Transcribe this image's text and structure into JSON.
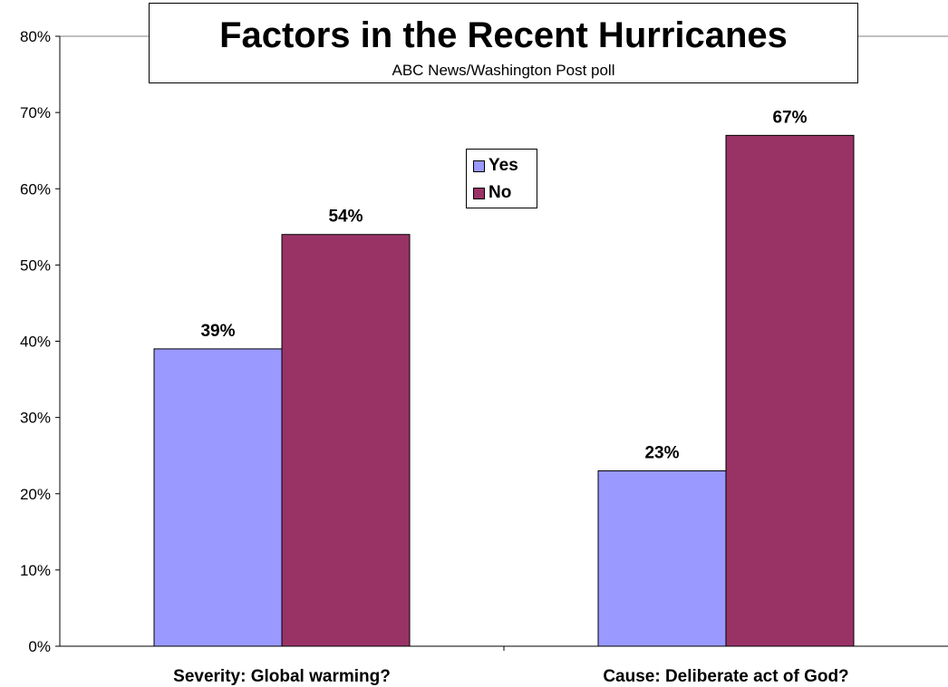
{
  "chart_data": {
    "type": "bar",
    "title": "Factors in the Recent Hurricanes",
    "subtitle": "ABC News/Washington Post poll",
    "categories": [
      "Severity: Global warming?",
      "Cause: Deliberate act of God?"
    ],
    "series": [
      {
        "name": "Yes",
        "values": [
          39,
          23
        ],
        "labels": [
          "39%",
          "23%"
        ],
        "color": "#9999ff"
      },
      {
        "name": "No",
        "values": [
          54,
          67
        ],
        "labels": [
          "54%",
          "67%"
        ],
        "color": "#993366"
      }
    ],
    "ylim": [
      0,
      80
    ],
    "yticks": [
      0,
      10,
      20,
      30,
      40,
      50,
      60,
      70,
      80
    ],
    "ytick_labels": [
      "0%",
      "10%",
      "20%",
      "30%",
      "40%",
      "50%",
      "60%",
      "70%",
      "80%"
    ],
    "grid": false,
    "legend_position": "top-center"
  }
}
